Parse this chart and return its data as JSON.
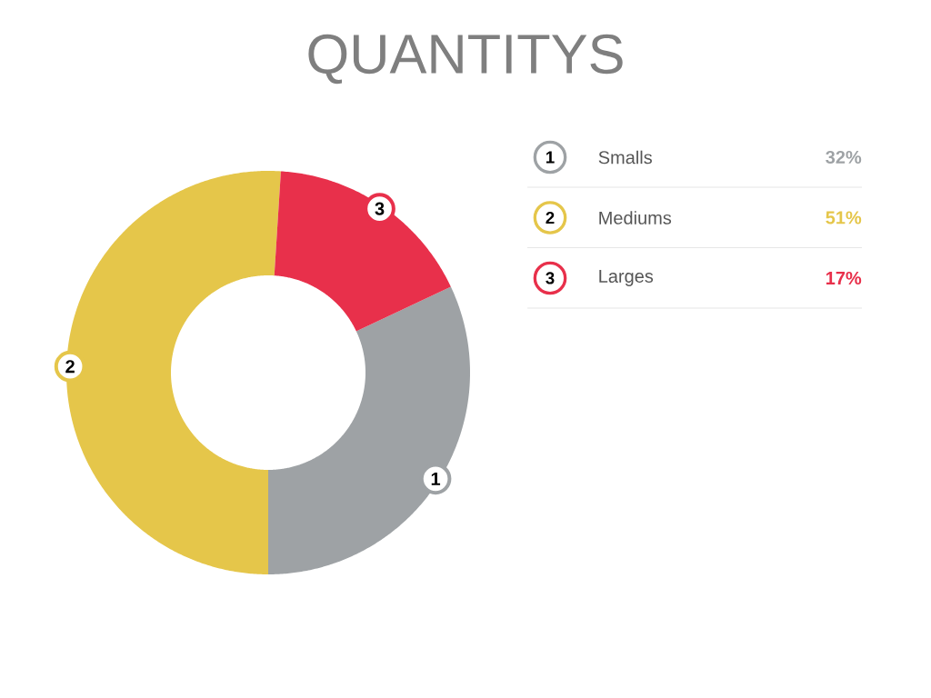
{
  "chart_data": {
    "type": "donut",
    "title": "QUANTITYS",
    "categories": [
      "Smalls",
      "Mediums",
      "Larges"
    ],
    "values": [
      32,
      51,
      17
    ],
    "colors": [
      "#9ea2a5",
      "#e5c64a",
      "#e8304b"
    ],
    "value_labels": [
      "32%",
      "51%",
      "17%"
    ],
    "annotations": [
      "1",
      "2",
      "3"
    ],
    "legend": "top right"
  }
}
